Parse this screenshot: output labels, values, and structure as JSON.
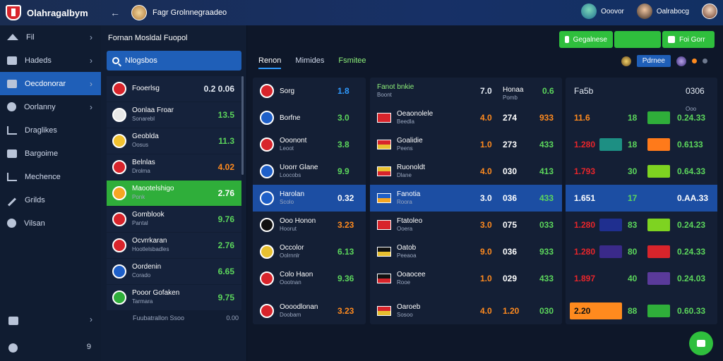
{
  "app": {
    "brand": "Olahragalbym",
    "top_title": "Fagr Grolnnegraadeo"
  },
  "users": [
    {
      "name": "Ooovor",
      "color": "#6fd1b4"
    },
    {
      "name": "Oalrabocg",
      "color": "#e8b98e"
    }
  ],
  "sidebar": {
    "items": [
      {
        "label": "Fil",
        "icon": "home-icon",
        "chevron": true
      },
      {
        "label": "Hadeds",
        "icon": "grid-icon",
        "chevron": true
      },
      {
        "label": "Oecdonorar",
        "icon": "board-icon",
        "chevron": true,
        "active": true
      },
      {
        "label": "Oorlanny",
        "icon": "circle-icon",
        "chevron": true
      },
      {
        "label": "Draglikes",
        "icon": "chart-icon"
      },
      {
        "label": "Bargoime",
        "icon": "grid-icon"
      },
      {
        "label": "Mechence",
        "icon": "trend-icon"
      },
      {
        "label": "Grilds",
        "icon": "pen-icon"
      },
      {
        "label": "Vilsan",
        "icon": "gear-icon"
      }
    ],
    "bottom": [
      {
        "icon": "layers-icon",
        "value": ""
      },
      {
        "icon": "badge-icon",
        "value": "9"
      }
    ]
  },
  "left_panel": {
    "title": "Fornan Mosldal Fuopol",
    "search_placeholder": "Nlogsbos",
    "rows": [
      {
        "name": "Fooerlsg",
        "sub": "",
        "value": "0.2 0.06",
        "color": "#e6ecf5",
        "crest": "#d8242b"
      },
      {
        "name": "Oonlaa Froar",
        "sub": "Sonarebl",
        "value": "13.5",
        "color": "#5cd65c",
        "crest": "#e8e8e8"
      },
      {
        "name": "Geoblda",
        "sub": "Oosus",
        "value": "11.3",
        "color": "#5cd65c",
        "crest": "#f2c230"
      },
      {
        "name": "Belnlas",
        "sub": "Drolma",
        "value": "4.02",
        "color": "#ff8a1e",
        "crest": "#d8242b"
      },
      {
        "name": "Maootelshigo",
        "sub": "Ponk",
        "value": "2.76",
        "color": "#ffffff",
        "crest": "#f5a623",
        "highlight": true
      },
      {
        "name": "Gomblook",
        "sub": "Pantal",
        "value": "9.76",
        "color": "#5cd65c",
        "crest": "#d8242b"
      },
      {
        "name": "Ocvrrkaran",
        "sub": "Hootlelsbadles",
        "value": "2.76",
        "color": "#5cd65c",
        "crest": "#d8242b"
      },
      {
        "name": "Oordenin",
        "sub": "Corado",
        "value": "6.65",
        "color": "#5cd65c",
        "crest": "#1e5fc8"
      },
      {
        "name": "Pooor Gofaken",
        "sub": "Tarmara",
        "value": "9.75",
        "color": "#5cd65c",
        "crest": "#2fae3a"
      }
    ],
    "footer": {
      "label": "Fuubatrallon Ssoo",
      "value": "0.00"
    }
  },
  "main": {
    "buttons": [
      {
        "label": "Gegalnese"
      },
      {
        "label": ""
      },
      {
        "label": "Foi Gorr"
      }
    ],
    "tabs": [
      {
        "label": "Renon",
        "state": "active"
      },
      {
        "label": "Mimides",
        "state": ""
      },
      {
        "label": "Fsmitee",
        "state": "green"
      }
    ],
    "controls": {
      "blue_label": "Pdrnee"
    },
    "col1": [
      {
        "name": "Sorg",
        "sub": "",
        "value": "1.8",
        "color": "#2f9bff",
        "crest": "#d8242b"
      },
      {
        "name": "Borfne",
        "sub": "",
        "value": "3.0",
        "color": "#5cd65c",
        "crest": "#1e5fc8"
      },
      {
        "name": "Ooonont",
        "sub": "Leoot",
        "value": "3.8",
        "color": "#5cd65c",
        "crest": "#d8242b"
      },
      {
        "name": "Uoorr Glane",
        "sub": "Loocobs",
        "value": "9.9",
        "color": "#5cd65c",
        "crest": "#1e5fc8"
      },
      {
        "name": "Harolan",
        "sub": "Scolo",
        "value": "0.32",
        "color": "#ffffff",
        "crest": "#1e5fc8",
        "sel": true
      },
      {
        "name": "Ooo Honon",
        "sub": "Hoorut",
        "value": "3.23",
        "color": "#ff8a1e",
        "crest": "#111111"
      },
      {
        "name": "Occolor",
        "sub": "Oolrnnlr",
        "value": "6.13",
        "color": "#5cd65c",
        "crest": "#e8c030"
      },
      {
        "name": "Colo Haon",
        "sub": "Oootnan",
        "value": "9.36",
        "color": "#5cd65c",
        "crest": "#d8242b"
      },
      {
        "name": "Oooodlonan",
        "sub": "Doobam",
        "value": "3.23",
        "color": "#ff8a1e",
        "crest": "#d8242b"
      }
    ],
    "col2_header": {
      "name": "Fanot bnkie",
      "sub": "Boont",
      "v1": "7.0",
      "v2": "Honaa",
      "v2sub": "Pomb",
      "v3": "0.6"
    },
    "col2": [
      {
        "name": "Oeaonolele",
        "sub": "Beedla",
        "v1": "4.0",
        "v1c": "#ff8a1e",
        "v2": "274",
        "v3": "933",
        "v3c": "#ff8a1e",
        "flag": [
          "#d8242b",
          "#d8242b"
        ]
      },
      {
        "name": "Goalidie",
        "sub": "Peens",
        "v1": "1.0",
        "v1c": "#ff8a1e",
        "v2": "273",
        "v3": "433",
        "v3c": "#5cd65c",
        "flag": [
          "#d8242b",
          "#e8c030"
        ]
      },
      {
        "name": "Ruonoldt",
        "sub": "Dlane",
        "v1": "4.0",
        "v1c": "#ff8a1e",
        "v2": "030",
        "v3": "413",
        "v3c": "#5cd65c",
        "flag": [
          "#e8c030",
          "#d8242b"
        ]
      },
      {
        "name": "Fanotia",
        "sub": "Roora",
        "v1": "3.0",
        "v1c": "#ffffff",
        "v2": "036",
        "v3": "433",
        "v3c": "#5cd65c",
        "flag": [
          "#1e5fc8",
          "#f5a623"
        ],
        "sel": true
      },
      {
        "name": "Ftatoleo",
        "sub": "Ooera",
        "v1": "3.0",
        "v1c": "#ff8a1e",
        "v2": "075",
        "v3": "033",
        "v3c": "#5cd65c",
        "flag": [
          "#d8242b",
          "#d8242b"
        ]
      },
      {
        "name": "Oatob",
        "sub": "Peeaoa",
        "v1": "9.0",
        "v1c": "#ff8a1e",
        "v2": "036",
        "v3": "933",
        "v3c": "#5cd65c",
        "flag": [
          "#111111",
          "#e8c030"
        ]
      },
      {
        "name": "Ooaocee",
        "sub": "Rooe",
        "v1": "1.0",
        "v1c": "#ff8a1e",
        "v2": "029",
        "v3": "433",
        "v3c": "#5cd65c",
        "flag": [
          "#111111",
          "#d8242b"
        ]
      },
      {
        "name": "Oaroeb",
        "sub": "Sosoo",
        "v1": "4.0",
        "v1c": "#ff8a1e",
        "v2": "1.20",
        "v2c": "#ff8a1e",
        "v3": "030",
        "v3c": "#5cd65c",
        "flag": [
          "#d8242b",
          "#e8c030"
        ]
      }
    ],
    "col3_header": {
      "label": "Fa5b",
      "value": "0306"
    },
    "col3": [
      {
        "a": "11.6",
        "ac": "#ff8a1e",
        "sw1": "",
        "b": "18",
        "sw2": "#2fae3a",
        "c": "0.24.33",
        "cc": "#5cd65c",
        "top": "Ooo"
      },
      {
        "a": "1.280",
        "ac": "#e8252b",
        "sw1": "#1d8f83",
        "b": "18",
        "sw2": "#ff7a1a",
        "c": "0.6133",
        "cc": "#5cd65c"
      },
      {
        "a": "1.793",
        "ac": "#e8252b",
        "sw1": "",
        "b": "30",
        "sw2": "#7ed321",
        "c": "0.64.33",
        "cc": "#5cd65c"
      },
      {
        "a": "1.651",
        "ac": "#ffffff",
        "sw1": "",
        "b": "17",
        "sw2": "",
        "c": "0.AA.33",
        "cc": "#ffffff",
        "sel": true
      },
      {
        "a": "1.280",
        "ac": "#e8252b",
        "sw1": "#1f2f8f",
        "b": "83",
        "sw2": "#7ed321",
        "c": "0.24.23",
        "cc": "#5cd65c"
      },
      {
        "a": "1.280",
        "ac": "#e8252b",
        "sw1": "#3a2a8a",
        "b": "80",
        "sw2": "#d8242b",
        "c": "0.24.33",
        "cc": "#5cd65c"
      },
      {
        "a": "1.897",
        "ac": "#e8252b",
        "sw1": "",
        "b": "40",
        "sw2": "#5a3a9a",
        "c": "0.24.03",
        "cc": "#5cd65c"
      },
      {
        "a": "2.20",
        "ac": "#111111",
        "sw1": "#ff8a1e",
        "b": "88",
        "sw2": "#2fae3a",
        "c": "0.60.33",
        "cc": "#5cd65c",
        "orange": true
      }
    ]
  }
}
